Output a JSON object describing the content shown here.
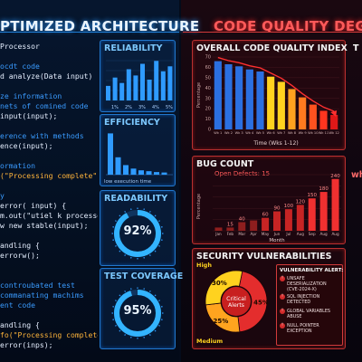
{
  "left_header": {
    "title": "PTIMIZED ARCHITECTURE"
  },
  "right_header": {
    "title": "CODE QUALITY DEGRAD"
  },
  "code_lines": [
    {
      "text": "Processor",
      "kind": "txt"
    },
    {
      "text": "",
      "kind": "txt"
    },
    {
      "text": "ocdt code",
      "kind": "com"
    },
    {
      "text": "d analyze(Data input) {",
      "kind": "txt"
    },
    {
      "text": "",
      "kind": "txt"
    },
    {
      "text": "ze information",
      "kind": "com"
    },
    {
      "text": "nets of comined code",
      "kind": "com"
    },
    {
      "text": "input(input);",
      "kind": "txt"
    },
    {
      "text": "",
      "kind": "txt"
    },
    {
      "text": "erence with methods",
      "kind": "com"
    },
    {
      "text": "ence(input);",
      "kind": "txt"
    },
    {
      "text": "",
      "kind": "txt"
    },
    {
      "text": "ormation",
      "kind": "com"
    },
    {
      "text": "(\"Processing complete\");",
      "kind": "str"
    },
    {
      "text": "",
      "kind": "txt"
    },
    {
      "text": "y",
      "kind": "com"
    },
    {
      "text": "error( input) {",
      "kind": "txt"
    },
    {
      "text": "m.out(\"utiel k processe!\");",
      "kind": "txt"
    },
    {
      "text": "w new stable(input);",
      "kind": "txt"
    },
    {
      "text": "",
      "kind": "txt"
    },
    {
      "text": "andling {",
      "kind": "txt"
    },
    {
      "text": "errorw();",
      "kind": "txt"
    },
    {
      "text": "",
      "kind": "txt"
    },
    {
      "text": "",
      "kind": "txt"
    },
    {
      "text": "controubated test",
      "kind": "com"
    },
    {
      "text": "commanating machims",
      "kind": "com"
    },
    {
      "text": "ent code",
      "kind": "com"
    },
    {
      "text": "",
      "kind": "txt"
    },
    {
      "text": "andling {",
      "kind": "txt"
    },
    {
      "text": "fo(\"Processing complete\");",
      "kind": "str"
    },
    {
      "text": "error(inps);",
      "kind": "txt"
    }
  ],
  "metrics": {
    "reliability": {
      "title": "RELIABILITY",
      "bars": [
        0.35,
        0.55,
        0.42,
        0.75,
        0.6,
        0.88,
        0.5,
        0.95,
        0.7,
        0.82
      ],
      "ticks": [
        "1%",
        "2%",
        "3%",
        "4%",
        "5%"
      ]
    },
    "efficiency": {
      "title": "EFFICIENCY",
      "bars": [
        0.95,
        0.4,
        0.22,
        0.14,
        0.1,
        0.08,
        0.06,
        0.05
      ],
      "caption": "low execution time"
    },
    "readability": {
      "title": "READABILITY",
      "value": "92%",
      "fraction": 0.92
    },
    "test_coverage": {
      "title": "TEST COVERAGE",
      "value": "95%",
      "fraction": 0.95
    }
  },
  "quality_index": {
    "title": "OVERALL CODE QUALITY INDEX",
    "ylabel": "Percentage",
    "xlabel": "Time (Wks 1-12)",
    "chart_data": {
      "type": "bar",
      "categories": [
        "Wk 1",
        "Wk 2",
        "Wk 3",
        "Wk 4",
        "Wk 5",
        "Wk 6",
        "Wk 7",
        "Wk 8",
        "Wk 9",
        "Wk 10",
        "Wk 11",
        "Wk 12"
      ],
      "values": [
        66,
        63,
        61,
        58,
        56,
        51,
        46,
        39,
        31,
        24,
        18,
        14
      ],
      "ylim": [
        0,
        70
      ],
      "yticks": [
        0,
        10,
        20,
        30,
        40,
        50,
        60,
        70
      ],
      "colors": [
        "#2b6fe0",
        "#2b6fe0",
        "#2b6fe0",
        "#2b6fe0",
        "#2b6fe0",
        "#ffd21f",
        "#ffd21f",
        "#ffa21f",
        "#ff7a1f",
        "#ff521f",
        "#ff351f",
        "#e01818"
      ]
    }
  },
  "bug_count": {
    "title": "BUG COUNT",
    "subtitle": "Open Defects: 15",
    "ylabel": "Percentage",
    "xlabel": "Month",
    "chart_data": {
      "type": "bar",
      "categories": [
        "Jan",
        "Feb",
        "Mar",
        "Apr",
        "May",
        "Jun",
        "Jul",
        "Aug",
        "Sep",
        "Aug",
        "Aug"
      ],
      "values": [
        15,
        15,
        40,
        48,
        60,
        90,
        100,
        120,
        150,
        180,
        240
      ],
      "labels": [
        "",
        "15",
        "40",
        "",
        "60",
        "90",
        "100",
        "120",
        "150",
        "180",
        "240"
      ]
    }
  },
  "security": {
    "title": "SECURITY VULNERABILITIES",
    "center_label": [
      "Critical",
      "Alerts"
    ],
    "chart_data": {
      "type": "pie",
      "slices": [
        {
          "name": "Critical",
          "value": 45,
          "label": "45%",
          "color": "#e42d2d"
        },
        {
          "name": "Medium",
          "value": 25,
          "label": "25%",
          "color": "#ffa41f"
        },
        {
          "name": "High",
          "value": 30,
          "label": "30%",
          "color": "#ffd21f"
        }
      ]
    },
    "legend": {
      "high": "High",
      "medium": "Medium"
    },
    "alert": {
      "title": "VULNERABILITY ALERT:",
      "items": [
        "UNSAFE DESERIALIZATION (CVE-2024-X)",
        "SQL INJECTION DETECTED",
        "GLOBAL VARIABLES ABUSE",
        "NULL POINTER EXCEPTION"
      ]
    }
  },
  "cutoff": {
    "right_t": "T",
    "right_wh": "wh"
  }
}
